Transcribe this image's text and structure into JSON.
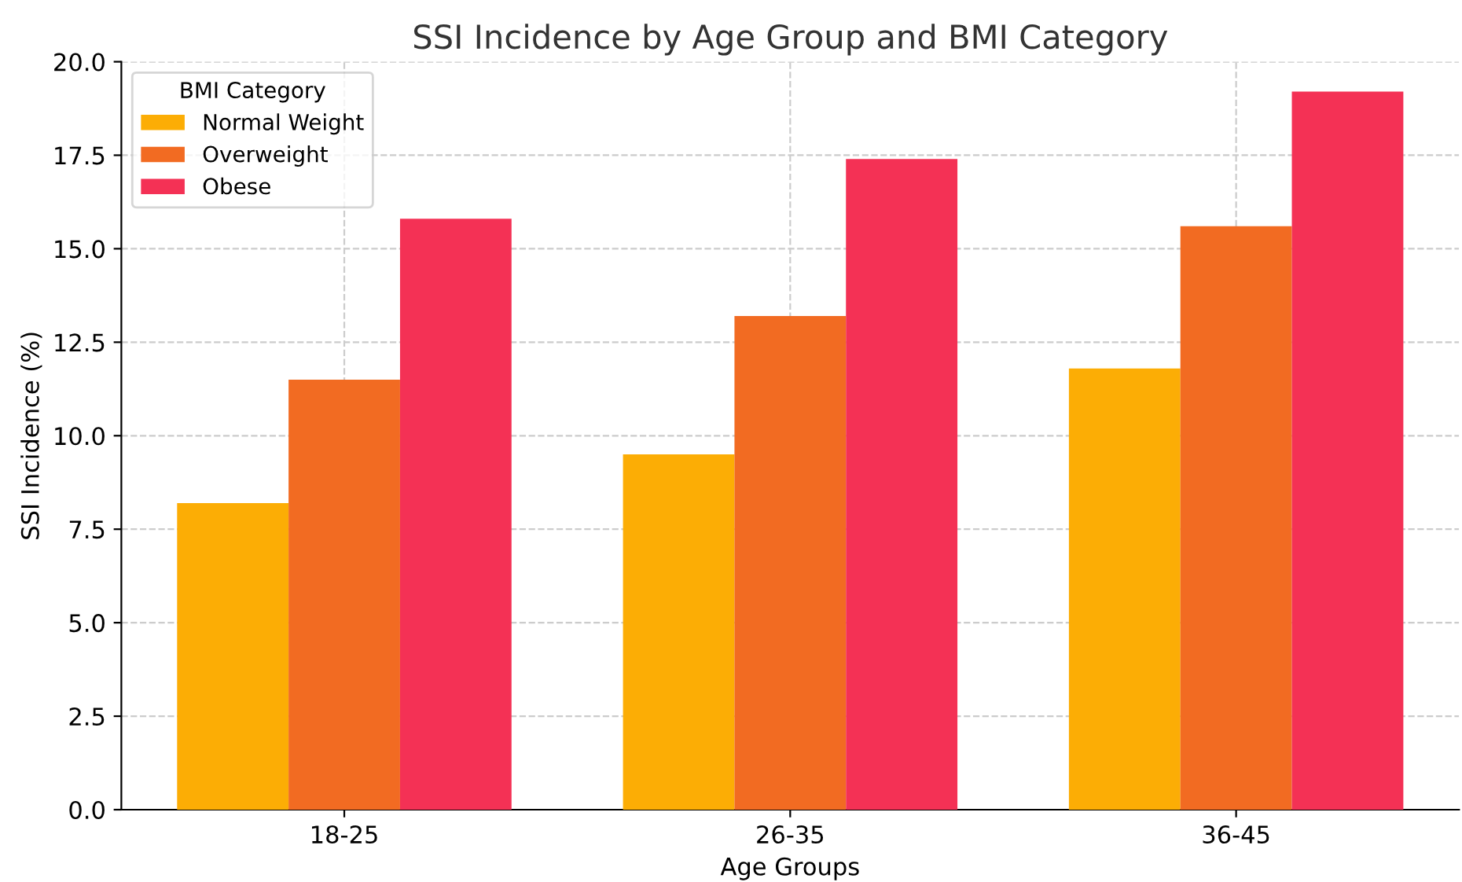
{
  "chart_data": {
    "type": "bar",
    "title": "SSI Incidence by Age Group and BMI Category",
    "xlabel": "Age Groups",
    "ylabel": "SSI Incidence (%)",
    "legend_title": "BMI Category",
    "categories": [
      "18-25",
      "26-35",
      "36-45"
    ],
    "series": [
      {
        "name": "Normal Weight",
        "color": "#fcad05",
        "values": [
          8.2,
          9.5,
          11.8
        ]
      },
      {
        "name": "Overweight",
        "color": "#f26b22",
        "values": [
          11.5,
          13.2,
          15.6
        ]
      },
      {
        "name": "Obese",
        "color": "#f43155",
        "values": [
          15.8,
          17.4,
          19.2
        ]
      }
    ],
    "ylim": [
      0,
      20
    ],
    "yticks": [
      {
        "value": 0,
        "label": "0.0"
      },
      {
        "value": 2.5,
        "label": "2.5"
      },
      {
        "value": 5,
        "label": "5.0"
      },
      {
        "value": 7.5,
        "label": "7.5"
      },
      {
        "value": 10,
        "label": "10.0"
      },
      {
        "value": 12.5,
        "label": "12.5"
      },
      {
        "value": 15,
        "label": "15.0"
      },
      {
        "value": 17.5,
        "label": "17.5"
      },
      {
        "value": 20,
        "label": "20.0"
      }
    ],
    "grid": true,
    "legend": "top left"
  }
}
